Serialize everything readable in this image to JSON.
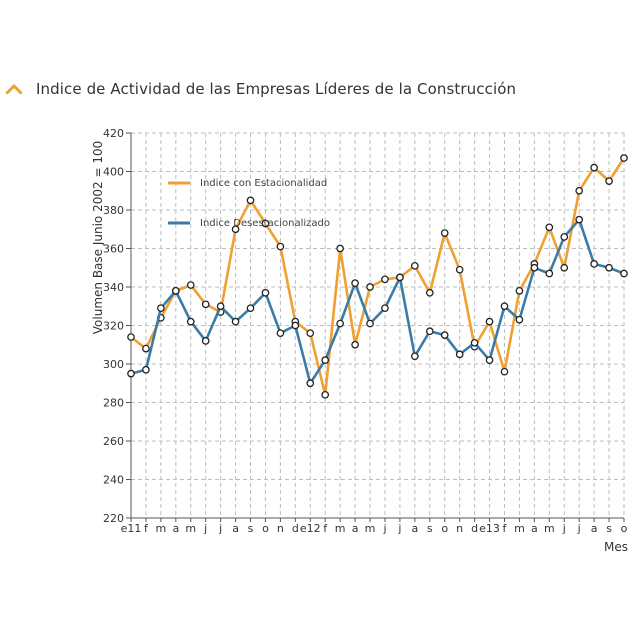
{
  "chart_data": {
    "type": "line",
    "title": "Indice de Actividad de las Empresas Líderes de la Construcción",
    "ylabel": "Volumen Base Junio 2002 = 100",
    "xlabel": "Mes",
    "ylim": [
      220,
      420
    ],
    "yticks": [
      220,
      240,
      260,
      280,
      300,
      320,
      340,
      360,
      380,
      400,
      420
    ],
    "categories": [
      "e11",
      "f",
      "m",
      "a",
      "m",
      "j",
      "j",
      "a",
      "s",
      "o",
      "n",
      "d",
      "e12",
      "f",
      "m",
      "a",
      "m",
      "j",
      "j",
      "a",
      "s",
      "o",
      "n",
      "d",
      "e13",
      "f",
      "m",
      "a",
      "m",
      "j",
      "j",
      "a",
      "s",
      "o"
    ],
    "tick_labels": [
      "e11",
      "f",
      "m",
      "a",
      "m",
      "j",
      "j",
      "a",
      "s",
      "o",
      "n",
      "d",
      "e12",
      "f",
      "m",
      "a",
      "m",
      "j",
      "j",
      "a",
      "s",
      "o",
      "n",
      "d",
      "e13",
      "f",
      "m",
      "a",
      "m",
      "j",
      "j",
      "a",
      "s",
      "o"
    ],
    "grid": true,
    "legend_position": "top-left",
    "series": [
      {
        "name": "Indice con Estacionalidad",
        "color": "#F0A030",
        "values": [
          314,
          308,
          324,
          338,
          341,
          331,
          327,
          370,
          385,
          373,
          361,
          322,
          316,
          284,
          360,
          310,
          340,
          344,
          345,
          351,
          337,
          368,
          349,
          309,
          322,
          296,
          338,
          352,
          371,
          350,
          390,
          402,
          395,
          407
        ]
      },
      {
        "name": "Indice Desestacionalizado",
        "color": "#3A7CA8",
        "values": [
          295,
          297,
          329,
          338,
          322,
          312,
          330,
          322,
          329,
          337,
          316,
          320,
          290,
          302,
          321,
          342,
          321,
          329,
          345,
          304,
          317,
          315,
          305,
          311,
          302,
          330,
          323,
          350,
          347,
          366,
          375,
          352,
          350,
          347
        ]
      }
    ]
  }
}
